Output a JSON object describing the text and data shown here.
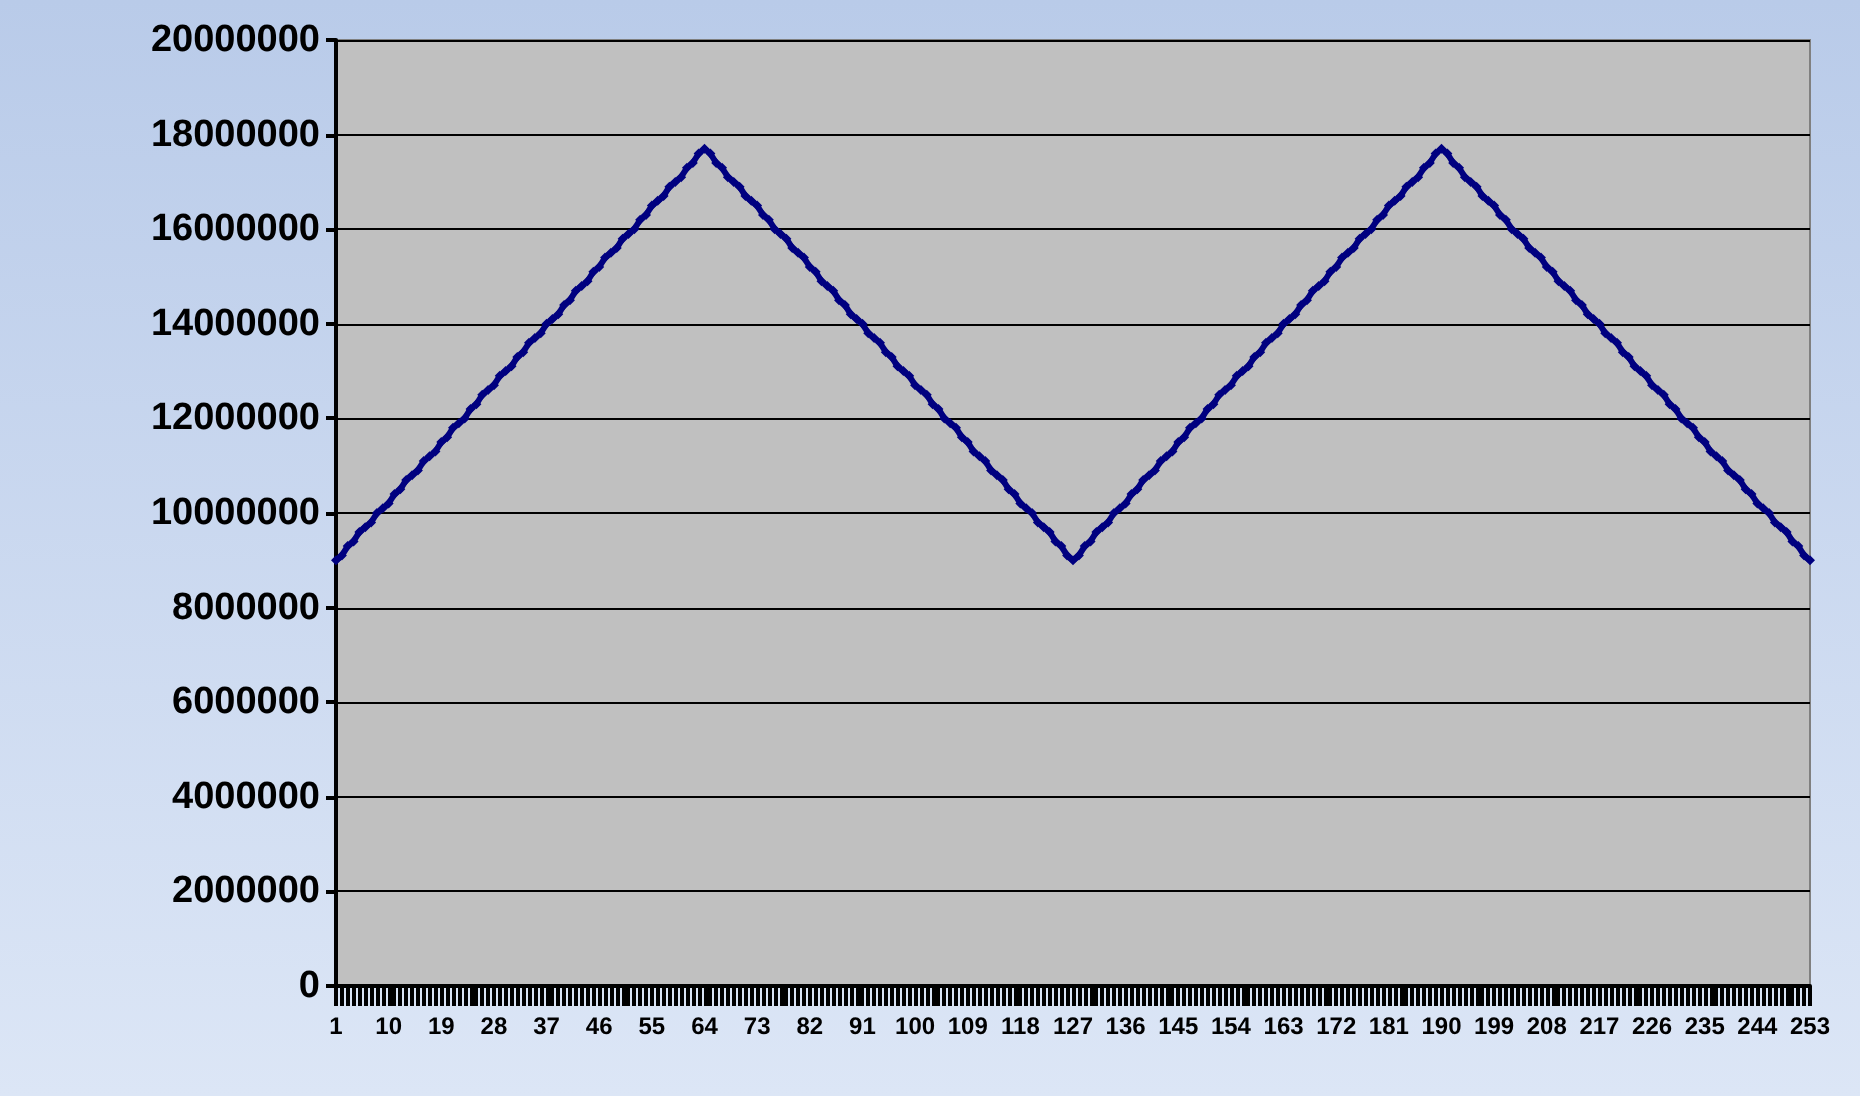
{
  "chart_data": {
    "type": "line",
    "categories": [
      "1",
      null,
      null,
      null,
      null,
      null,
      null,
      null,
      null,
      "10",
      null,
      null,
      null,
      null,
      null,
      null,
      null,
      null,
      "19",
      null,
      null,
      null,
      null,
      null,
      null,
      null,
      null,
      "28",
      null,
      null,
      null,
      null,
      null,
      null,
      null,
      null,
      "37",
      null,
      null,
      null,
      null,
      null,
      null,
      null,
      null,
      "46",
      null,
      null,
      null,
      null,
      null,
      null,
      null,
      null,
      "55",
      null,
      null,
      null,
      null,
      null,
      null,
      null,
      null,
      "64",
      null,
      null,
      null,
      null,
      null,
      null,
      null,
      null,
      "73",
      null,
      null,
      null,
      null,
      null,
      null,
      null,
      null,
      "82",
      null,
      null,
      null,
      null,
      null,
      null,
      null,
      null,
      "91",
      null,
      null,
      null,
      null,
      null,
      null,
      null,
      null,
      "100",
      null,
      null,
      null,
      null,
      null,
      null,
      null,
      null,
      "109",
      null,
      null,
      null,
      null,
      null,
      null,
      null,
      null,
      "118",
      null,
      null,
      null,
      null,
      null,
      null,
      null,
      null,
      "127",
      null,
      null,
      null,
      null,
      null,
      null,
      null,
      null,
      "136",
      null,
      null,
      null,
      null,
      null,
      null,
      null,
      null,
      "145",
      null,
      null,
      null,
      null,
      null,
      null,
      null,
      null,
      "154",
      null,
      null,
      null,
      null,
      null,
      null,
      null,
      null,
      "163",
      null,
      null,
      null,
      null,
      null,
      null,
      null,
      null,
      "172",
      null,
      null,
      null,
      null,
      null,
      null,
      null,
      null,
      "181",
      null,
      null,
      null,
      null,
      null,
      null,
      null,
      null,
      "190",
      null,
      null,
      null,
      null,
      null,
      null,
      null,
      null,
      "199",
      null,
      null,
      null,
      null,
      null,
      null,
      null,
      null,
      "208",
      null,
      null,
      null,
      null,
      null,
      null,
      null,
      null,
      "217",
      null,
      null,
      null,
      null,
      null,
      null,
      null,
      null,
      "226",
      null,
      null,
      null,
      null,
      null,
      null,
      null,
      null,
      "235",
      null,
      null,
      null,
      null,
      null,
      null,
      null,
      null,
      "244",
      null,
      null,
      null,
      null,
      null,
      null,
      null,
      null,
      "253"
    ],
    "ylim": [
      0,
      20000000
    ],
    "yticks": [
      0,
      2000000,
      4000000,
      6000000,
      8000000,
      10000000,
      12000000,
      14000000,
      16000000,
      18000000,
      20000000
    ],
    "grid": "y",
    "marker": "diamond",
    "line_style": "solid",
    "series": [
      {
        "color": "#000080",
        "values": [
          9000000,
          9100000,
          9300000,
          9400000,
          9600000,
          9700000,
          9800000,
          10000000,
          10100000,
          10200000,
          10400000,
          10500000,
          10700000,
          10800000,
          10900000,
          11100000,
          11200000,
          11300000,
          11500000,
          11600000,
          11800000,
          11900000,
          12000000,
          12200000,
          12300000,
          12500000,
          12600000,
          12700000,
          12900000,
          13000000,
          13100000,
          13300000,
          13400000,
          13600000,
          13700000,
          13800000,
          14000000,
          14100000,
          14200000,
          14400000,
          14500000,
          14700000,
          14800000,
          14900000,
          15100000,
          15200000,
          15400000,
          15500000,
          15600000,
          15800000,
          15900000,
          16000000,
          16200000,
          16300000,
          16500000,
          16600000,
          16700000,
          16900000,
          17000000,
          17100000,
          17300000,
          17400000,
          17600000,
          17700000,
          17600000,
          17400000,
          17300000,
          17100000,
          17000000,
          16900000,
          16700000,
          16600000,
          16500000,
          16300000,
          16200000,
          16000000,
          15900000,
          15800000,
          15600000,
          15500000,
          15400000,
          15200000,
          15100000,
          14900000,
          14800000,
          14700000,
          14500000,
          14400000,
          14200000,
          14100000,
          14000000,
          13800000,
          13700000,
          13600000,
          13400000,
          13300000,
          13100000,
          13000000,
          12900000,
          12700000,
          12600000,
          12500000,
          12300000,
          12200000,
          12000000,
          11900000,
          11800000,
          11600000,
          11500000,
          11300000,
          11200000,
          11100000,
          10900000,
          10800000,
          10700000,
          10500000,
          10400000,
          10200000,
          10100000,
          10000000,
          9800000,
          9700000,
          9600000,
          9400000,
          9300000,
          9100000,
          9000000,
          9100000,
          9300000,
          9400000,
          9600000,
          9700000,
          9800000,
          10000000,
          10100000,
          10200000,
          10400000,
          10500000,
          10700000,
          10800000,
          10900000,
          11100000,
          11200000,
          11300000,
          11500000,
          11600000,
          11800000,
          11900000,
          12000000,
          12200000,
          12300000,
          12500000,
          12600000,
          12700000,
          12900000,
          13000000,
          13100000,
          13300000,
          13400000,
          13600000,
          13700000,
          13800000,
          14000000,
          14100000,
          14200000,
          14400000,
          14500000,
          14700000,
          14800000,
          14900000,
          15100000,
          15200000,
          15400000,
          15500000,
          15600000,
          15800000,
          15900000,
          16000000,
          16200000,
          16300000,
          16500000,
          16600000,
          16700000,
          16900000,
          17000000,
          17100000,
          17300000,
          17400000,
          17600000,
          17700000,
          17600000,
          17400000,
          17300000,
          17100000,
          17000000,
          16900000,
          16700000,
          16600000,
          16500000,
          16300000,
          16200000,
          16000000,
          15900000,
          15800000,
          15600000,
          15500000,
          15400000,
          15200000,
          15100000,
          14900000,
          14800000,
          14700000,
          14500000,
          14400000,
          14200000,
          14100000,
          14000000,
          13800000,
          13700000,
          13600000,
          13400000,
          13300000,
          13100000,
          13000000,
          12900000,
          12700000,
          12600000,
          12500000,
          12300000,
          12200000,
          12000000,
          11900000,
          11800000,
          11600000,
          11500000,
          11300000,
          11200000,
          11100000,
          10900000,
          10800000,
          10700000,
          10500000,
          10400000,
          10200000,
          10100000,
          10000000,
          9800000,
          9700000,
          9600000,
          9400000,
          9300000,
          9100000,
          9000000
        ]
      }
    ]
  }
}
